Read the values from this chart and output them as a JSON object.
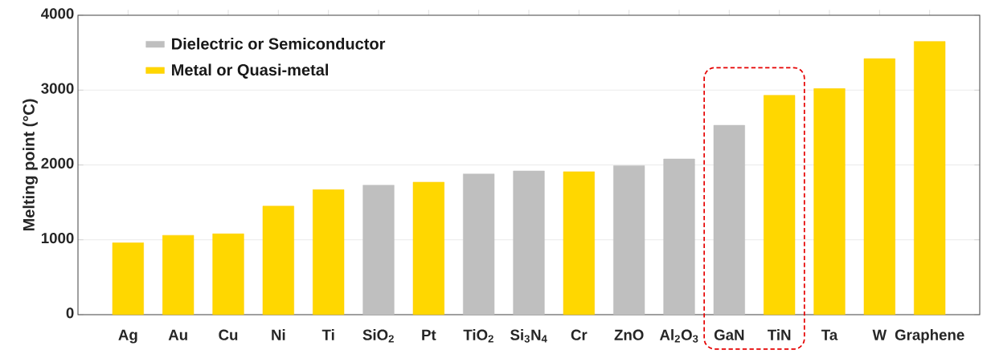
{
  "chart_data": {
    "type": "bar",
    "ylabel": "Melting point (°C)",
    "categories": [
      "Ag",
      "Au",
      "Cu",
      "Ni",
      "Ti",
      "SiO$_{2}$",
      "Pt",
      "TiO$_{2}$",
      "Si$_{3}$N$_{4}$",
      "Cr",
      "ZnO",
      "Al$_{2}$O$_{3}$",
      "GaN",
      "TiN",
      "Ta",
      "W",
      "Graphene"
    ],
    "series": [
      {
        "name": "Dielectric or Semiconductor",
        "color": "#bfbfbf",
        "values": [
          null,
          null,
          null,
          null,
          null,
          1730,
          null,
          1880,
          1920,
          null,
          1990,
          2080,
          2530,
          null,
          null,
          null,
          null
        ]
      },
      {
        "name": "Metal or Quasi-metal",
        "color": "#ffd700",
        "values": [
          960,
          1060,
          1080,
          1450,
          1670,
          null,
          1770,
          null,
          null,
          1910,
          null,
          null,
          null,
          2930,
          3020,
          3420,
          3650
        ]
      }
    ],
    "ylim": [
      0,
      4000
    ],
    "yticks": [
      0,
      1000,
      2000,
      3000,
      4000
    ],
    "grid": "y",
    "legend": "top left"
  }
}
